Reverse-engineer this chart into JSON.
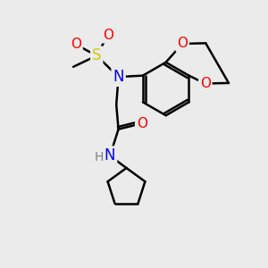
{
  "bg_color": "#ebebeb",
  "atom_colors": {
    "C": "#000000",
    "N": "#0000ff",
    "O": "#ff0000",
    "S": "#cccc00",
    "H": "#808080"
  },
  "bond_color": "#000000",
  "bond_width": 1.8,
  "figsize": [
    3.0,
    3.0
  ],
  "dpi": 100
}
